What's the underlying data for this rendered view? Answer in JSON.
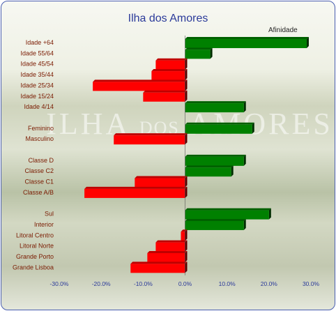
{
  "chart_data": {
    "type": "bar",
    "orientation": "horizontal",
    "title": "Ilha dos Amores",
    "legend": [
      "Afinidade"
    ],
    "legend_position": "top-right",
    "categories": [
      "Idade +64",
      "Idade 55/64",
      "Idade 45/54",
      "Idade 35/44",
      "Idade 25/34",
      "Idade 15/24",
      "Idade 4/14",
      "",
      "Feminino",
      "Masculino",
      "",
      "Classe D",
      "Classe C2",
      "Classe C1",
      "Classe A/B",
      "",
      "Sul",
      "Interior",
      "Litoral Centro",
      "Litoral Norte",
      "Grande Porto",
      "Grande Lisboa"
    ],
    "values": [
      29,
      6,
      -7,
      -8,
      -22,
      -10,
      14,
      null,
      16,
      -17,
      null,
      14,
      11,
      -12,
      -24,
      null,
      20,
      14,
      -1,
      -7,
      -9,
      -13
    ],
    "xlim": [
      -30,
      30
    ],
    "xticks": [
      -30,
      -20,
      -10,
      0,
      10,
      20,
      30
    ],
    "xtick_labels": [
      "-30.0%",
      "-20.0%",
      "-10.0%",
      "0.0%",
      "10.0%",
      "20.0%",
      "30.0%"
    ],
    "positive_color": "#008000",
    "negative_color": "#ff0000",
    "grid": false
  },
  "background": {
    "lettering_main": "ILHA",
    "lettering_small": "DOS",
    "lettering_end": "AMORES"
  }
}
